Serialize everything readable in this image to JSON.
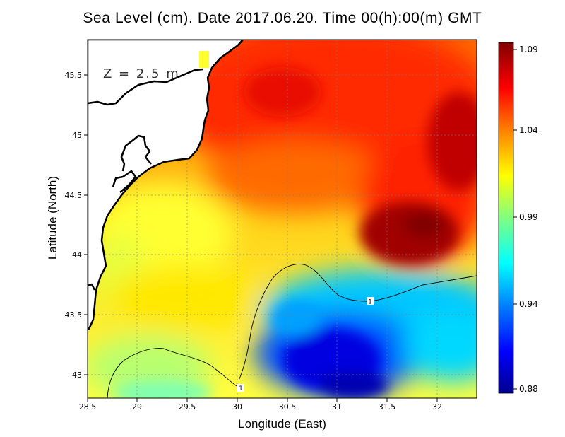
{
  "title": "Sea Level (cm). Date 2017.06.20. Time 00(h):00(m) GMT",
  "depth_label": "Z = 2.5 m",
  "x_axis": {
    "label": "Longitude (East)",
    "range": [
      28.5,
      32.4
    ],
    "ticks": [
      "28.5",
      "29",
      "29.5",
      "30",
      "30.5",
      "31",
      "31.5",
      "32"
    ]
  },
  "y_axis": {
    "label": "Latitude (North)",
    "range": [
      42.8,
      45.8
    ],
    "ticks": [
      "43",
      "43.5",
      "44",
      "44.5",
      "45",
      "45.5"
    ]
  },
  "colorbar": {
    "min": 0.88,
    "max": 1.09,
    "labels": [
      "1.09",
      "1.04",
      "0.99",
      "0.94",
      "0.88"
    ],
    "colors": [
      "#00008f",
      "#0000ff",
      "#0080ff",
      "#00ffff",
      "#80ff80",
      "#ffff00",
      "#ff8000",
      "#ff0000",
      "#800000"
    ]
  },
  "contour_labels": [
    "1",
    "1"
  ],
  "colors": {
    "land": "#ffffff",
    "coastline": "#000000",
    "grid": "#7f7f7f"
  }
}
